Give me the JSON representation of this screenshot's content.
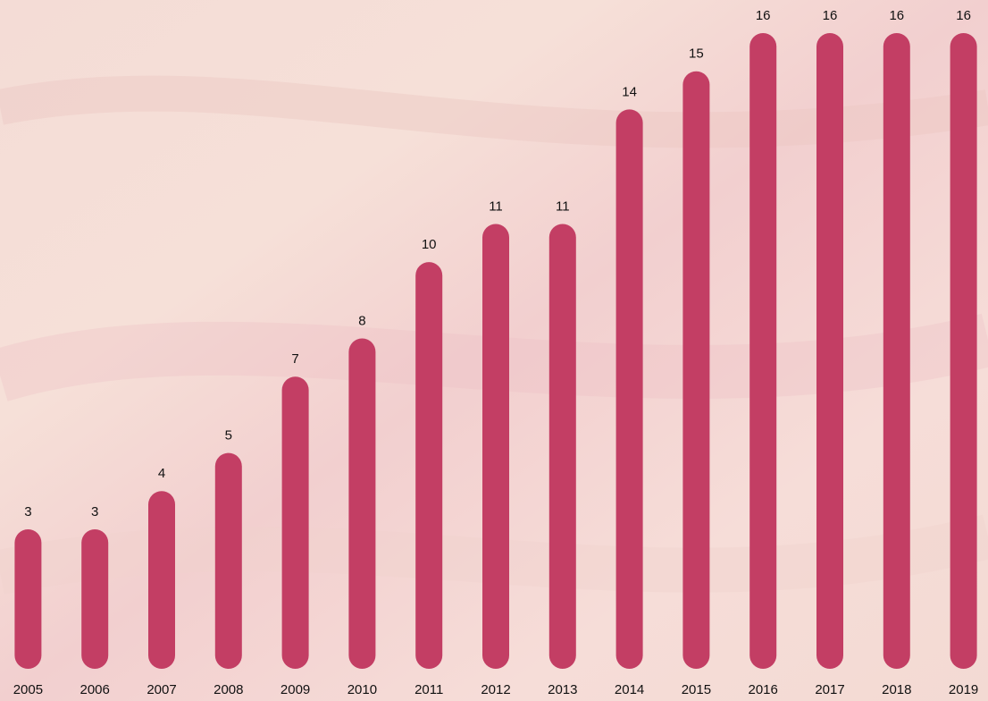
{
  "chart_data": {
    "type": "bar",
    "categories": [
      "2005",
      "2006",
      "2007",
      "2008",
      "2009",
      "2010",
      "2011",
      "2012",
      "2013",
      "2014",
      "2015",
      "2016",
      "2017",
      "2018",
      "2019"
    ],
    "values": [
      3,
      3,
      4,
      5,
      7,
      8,
      10,
      11,
      11,
      14,
      15,
      16,
      16,
      16,
      16
    ],
    "color": "#c33e64",
    "ylim": [
      0,
      16
    ]
  }
}
